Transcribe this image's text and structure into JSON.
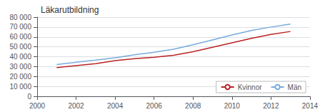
{
  "chart_data": {
    "type": "line",
    "title": "Läkarutbildning",
    "x": [
      2001,
      2002,
      2003,
      2004,
      2005,
      2006,
      2007,
      2008,
      2009,
      2010,
      2011,
      2012,
      2013
    ],
    "series": [
      {
        "name": "Kvinnor",
        "color": "#bb2222",
        "values": [
          29000,
          31000,
          33000,
          36000,
          38000,
          39500,
          41500,
          45000,
          49500,
          54000,
          58500,
          62500,
          65500
        ]
      },
      {
        "name": "Män",
        "color": "#77aadd",
        "values": [
          32000,
          34500,
          36500,
          39000,
          42000,
          44500,
          47500,
          52000,
          57000,
          62000,
          66500,
          70000,
          73000
        ]
      }
    ],
    "xlim": [
      2000,
      2014
    ],
    "xticks": [
      2000,
      2002,
      2004,
      2006,
      2008,
      2010,
      2012,
      2014
    ],
    "ylim": [
      0,
      80000
    ],
    "yticks": [
      0,
      {
        "value": 10000,
        "label": "10 000"
      },
      {
        "value": 20000,
        "label": "20 000"
      },
      {
        "value": 30000,
        "label": "30 000"
      },
      {
        "value": 40000,
        "label": "40 000"
      },
      {
        "value": 50000,
        "label": "50 000"
      },
      {
        "value": 60000,
        "label": "60 000"
      },
      {
        "value": 70000,
        "label": "70 000"
      },
      {
        "value": 80000,
        "label": "80 000"
      }
    ],
    "grid": true,
    "legend": "lower right"
  }
}
